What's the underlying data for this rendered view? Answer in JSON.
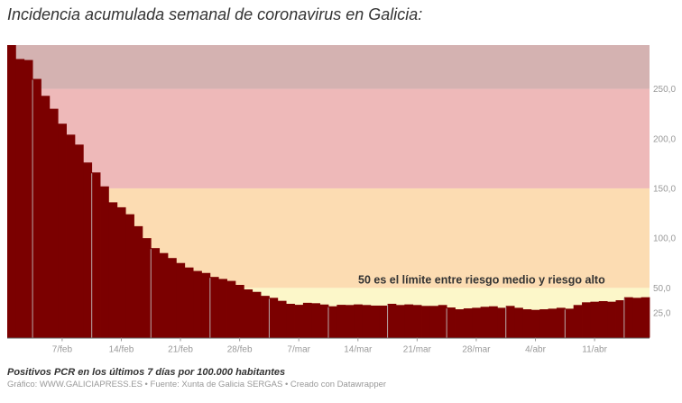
{
  "title": "Incidencia acumulada semanal de coronavirus en Galicia:",
  "note": "Positivos PCR en los últimos 7 días por 100.000 habitantes",
  "credit": "Gráfico: WWW.GALICIAPRESS.ES • Fuente: Xunta de Galicia SERGAS • Creado con Datawrapper",
  "chart_data": {
    "type": "bar",
    "title": "Incidencia acumulada semanal de coronavirus en Galicia:",
    "ylim": [
      0,
      294
    ],
    "y_axis_position": "right",
    "yticks": [
      25,
      50,
      100,
      150,
      200,
      250
    ],
    "ytick_labels": [
      "25,0",
      "50,0",
      "100,0",
      "150,0",
      "200,0",
      "250,0"
    ],
    "x_start": "1/feb",
    "x_end": "17/abr",
    "xtick_labels": [
      "7/feb",
      "14/feb",
      "21/feb",
      "28/feb",
      "7/mar",
      "14/mar",
      "21/mar",
      "28/mar",
      "4/abr",
      "11/abr"
    ],
    "xtick_indices": [
      6,
      13,
      20,
      27,
      34,
      41,
      48,
      55,
      62,
      69
    ],
    "values": [
      294,
      280,
      279,
      260,
      243,
      230,
      215,
      204,
      194,
      176,
      166,
      152,
      136,
      131,
      124,
      112,
      100,
      90,
      85,
      80,
      75,
      70.5,
      67,
      65,
      61,
      59,
      57,
      53,
      48.5,
      46,
      42,
      40,
      37,
      34,
      33,
      35,
      34.6,
      33.3,
      31.5,
      33,
      32.8,
      33.4,
      32.8,
      32.2,
      32.2,
      34.0,
      32.8,
      33.4,
      32.8,
      31.9,
      31.9,
      32.8,
      30.3,
      28.5,
      29.4,
      30.0,
      31.0,
      31.5,
      30.0,
      31.9,
      30.0,
      28.5,
      27.9,
      28.5,
      29.1,
      30.0,
      29.1,
      32.8,
      35.5,
      36.1,
      36.7,
      36.1,
      37.6,
      40.6,
      40.0,
      40.6
    ],
    "bands": [
      {
        "from": 0,
        "to": 50,
        "color": "#fcf7c9"
      },
      {
        "from": 50,
        "to": 150,
        "color": "#fcdcb2"
      },
      {
        "from": 150,
        "to": 250,
        "color": "#eeb9b9"
      },
      {
        "from": 250,
        "to": 294,
        "color": "#d4b2b1"
      }
    ],
    "annotation": {
      "text": "50 es el límite entre riesgo medio y riesgo alto",
      "value": 50
    },
    "bar_color": "#7b0000",
    "grid": false
  }
}
